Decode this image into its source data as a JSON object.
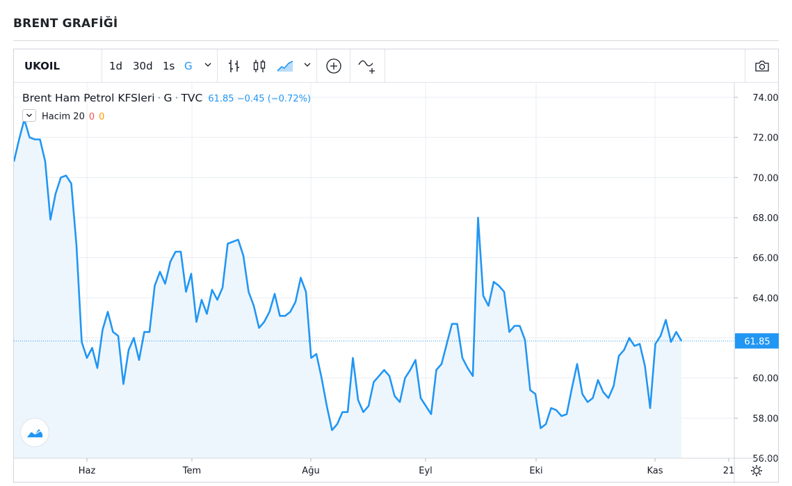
{
  "page_title": "BRENT GRAFİĞİ",
  "toolbar": {
    "symbol": "UKOIL",
    "intervals": [
      "1d",
      "30d",
      "1s",
      "G"
    ],
    "active_interval": "G"
  },
  "legend": {
    "name": "Brent Ham Petrol KFSleri",
    "sep1": "·",
    "interval": "G",
    "sep2": "·",
    "source": "TVC",
    "last": "61.85",
    "change": "−0.45",
    "change_pct": "(−0.72%)",
    "volume_label": "Hacim 20",
    "volume_v1": "0",
    "volume_v2": "0"
  },
  "colors": {
    "line": "#2196f3",
    "area": "#eef6fd",
    "grid": "#e9edf3",
    "last_price_badge": "#2196f3"
  },
  "chart_data": {
    "type": "area",
    "title": "",
    "xlabel": "",
    "ylabel": "",
    "ylim": [
      55.8,
      75.0
    ],
    "y_ticks": [
      "74.00",
      "72.00",
      "70.00",
      "68.00",
      "66.00",
      "64.00",
      "62.00",
      "60.00",
      "58.00",
      "56.00"
    ],
    "x_ticks": [
      "Haz",
      "Tem",
      "Ağu",
      "Eyl",
      "Eki",
      "Kas",
      "21"
    ],
    "last_value_label": "61.85",
    "grid": true,
    "series": [
      {
        "values": [
          70.8,
          71.9,
          72.9,
          72.0,
          71.9,
          71.9,
          70.8,
          67.9,
          69.2,
          70.0,
          70.1,
          69.7,
          66.6,
          61.8,
          61.0,
          61.5,
          60.5,
          62.4,
          63.3,
          62.3,
          62.1,
          59.7,
          61.4,
          62.0,
          60.9,
          62.3,
          62.3,
          64.6,
          65.3,
          64.7,
          65.8,
          66.3,
          66.3,
          64.3,
          65.2,
          62.8,
          63.9,
          63.2,
          64.4,
          63.9,
          64.5,
          66.7,
          66.8,
          66.9,
          66.1,
          64.3,
          63.6,
          62.5,
          62.8,
          63.3,
          64.2,
          63.1,
          63.1,
          63.3,
          63.8,
          65.0,
          64.3,
          61.0,
          61.2,
          60.0,
          58.6,
          57.4,
          57.7,
          58.3,
          58.3,
          61.0,
          58.9,
          58.3,
          58.6,
          59.8,
          60.1,
          60.4,
          60.1,
          59.1,
          58.8,
          60.0,
          60.4,
          60.9,
          59.0,
          58.6,
          58.2,
          60.4,
          60.7,
          61.7,
          62.7,
          62.7,
          61.0,
          60.5,
          60.1,
          68.0,
          64.1,
          63.6,
          64.8,
          64.6,
          64.3,
          62.3,
          62.6,
          62.6,
          61.9,
          59.4,
          59.2,
          57.5,
          57.7,
          58.5,
          58.4,
          58.1,
          58.2,
          59.5,
          60.7,
          59.2,
          58.8,
          59.0,
          59.9,
          59.3,
          59.0,
          59.6,
          61.1,
          61.4,
          62.0,
          61.6,
          61.7,
          60.6,
          58.5,
          61.7,
          62.1,
          62.9,
          61.8,
          62.3,
          61.85
        ]
      }
    ]
  }
}
